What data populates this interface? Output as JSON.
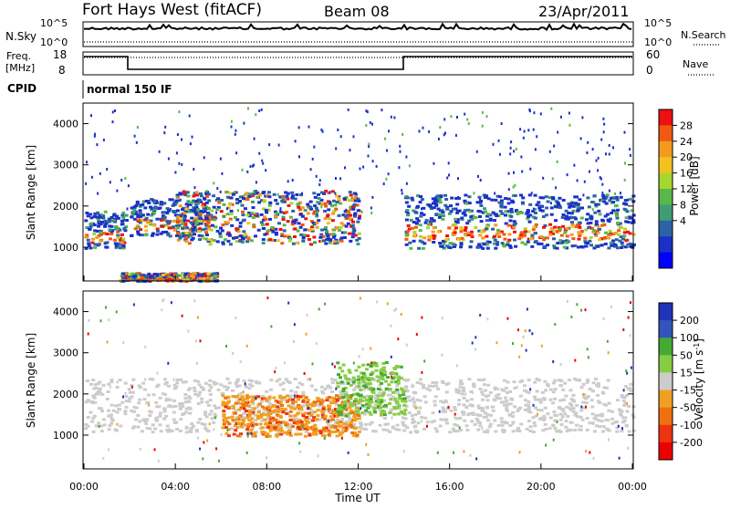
{
  "header": {
    "title": "Fort Hays West (fitACF)",
    "beam": "Beam 08",
    "date": "23/Apr/2011"
  },
  "top_panels": {
    "nsky_label": "N.Sky",
    "nsky_ticks": [
      "10^5",
      "10^0"
    ],
    "nsearch_label": "N.Search",
    "nsearch_ticks": [
      "10^5",
      "10^0"
    ],
    "freq_label_line1": "Freq.",
    "freq_label_line2": "[MHz]",
    "freq_ticks": [
      "18",
      "8"
    ],
    "nave_label": "Nave",
    "nave_ticks": [
      "60",
      "0"
    ],
    "cpid_label": "CPID",
    "cpid_value": "normal 150 IF"
  },
  "x_axis": {
    "label": "Time UT",
    "ticks": [
      "00:00",
      "04:00",
      "08:00",
      "12:00",
      "16:00",
      "20:00",
      "00:00"
    ]
  },
  "chart_data": [
    {
      "type": "heatmap",
      "panel": "power",
      "ylabel": "Slant Range [km]",
      "yticks": [
        1000,
        2000,
        3000,
        4000
      ],
      "ylim": [
        180,
        4500
      ],
      "xlim_hours": [
        0,
        24
      ],
      "colorbar_label": "Power [dB]",
      "colorbar_ticks": [
        "28",
        "24",
        "20",
        "16",
        "12",
        "8",
        "4"
      ],
      "colorbar_colors": [
        "#ee1111",
        "#f05a10",
        "#f59a1e",
        "#f2c21f",
        "#a8d630",
        "#58b84a",
        "#3e9d72",
        "#2d63a6",
        "#1c30c8",
        "#0000ff"
      ],
      "bands": [
        {
          "t0": 0.0,
          "t1": 1.8,
          "r0": 1000,
          "r1": 1900,
          "value": "strong"
        },
        {
          "t0": 2.0,
          "t1": 5.5,
          "r0": 1300,
          "r1": 2200,
          "value": "strong"
        },
        {
          "t0": 4.0,
          "t1": 12.0,
          "r0": 1100,
          "r1": 2400,
          "value": "mixed"
        },
        {
          "t0": 14.0,
          "t1": 24.0,
          "r0": 1000,
          "r1": 2300,
          "value": "strong"
        },
        {
          "t0": 1.5,
          "t1": 5.8,
          "r0": 200,
          "r1": 400,
          "value": "mixed"
        }
      ]
    },
    {
      "type": "heatmap",
      "panel": "velocity",
      "ylabel": "Slant Range [km]",
      "yticks": [
        1000,
        2000,
        3000,
        4000
      ],
      "ylim": [
        180,
        4500
      ],
      "xlim_hours": [
        0,
        24
      ],
      "colorbar_label": "Velocity [m s^-1]",
      "colorbar_ticks": [
        "200",
        "100",
        "50",
        "15",
        "-15",
        "-50",
        "-100",
        "-200"
      ],
      "colorbar_colors": [
        "#2233bb",
        "#3355bb",
        "#44aa33",
        "#88cc44",
        "#cccccc",
        "#f0a020",
        "#f07010",
        "#ee3311",
        "#ee0000"
      ],
      "bands": [
        {
          "t0": 0.0,
          "t1": 24.0,
          "r0": 1100,
          "r1": 2400,
          "value": "ground scatter"
        },
        {
          "t0": 6.0,
          "t1": 12.0,
          "r0": 1000,
          "r1": 2000,
          "value": "negative"
        },
        {
          "t0": 11.0,
          "t1": 14.0,
          "r0": 1500,
          "r1": 2800,
          "value": "positive"
        }
      ]
    }
  ]
}
